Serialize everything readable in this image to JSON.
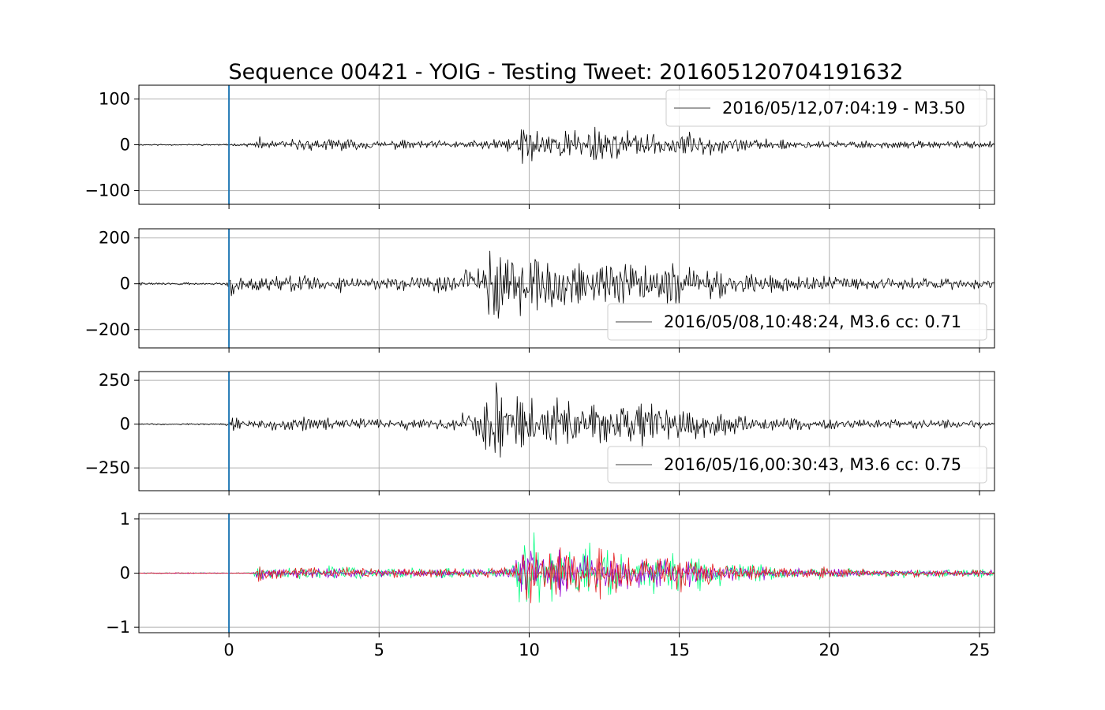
{
  "chart_data": {
    "type": "line",
    "title": "Sequence 00421 - YOIG - Testing Tweet: 201605120704191632",
    "xlim": [
      -3,
      25.5
    ],
    "x_ticks": [
      0,
      5,
      10,
      15,
      20,
      25
    ],
    "x_tick_labels": [
      "0",
      "5",
      "10",
      "15",
      "20",
      "25"
    ],
    "grid": true,
    "marker_x": 0,
    "colors": {
      "trace": "#000000",
      "marker": "#1f77b4",
      "grid": "#b0b0b0",
      "stack": [
        "#00ff7f",
        "#9400d3",
        "#e41a1c"
      ]
    },
    "panels": [
      {
        "ylim": [
          -130,
          130
        ],
        "y_ticks": [
          -100,
          0,
          100
        ],
        "y_tick_labels": [
          "−100",
          "0",
          "100"
        ],
        "legend": "2016/05/12,07:04:19 - M3.50",
        "legend_loc": "upper right",
        "envelope": [
          [
            -3,
            2
          ],
          [
            0,
            2
          ],
          [
            0.9,
            5
          ],
          [
            1.0,
            18
          ],
          [
            1.3,
            12
          ],
          [
            2.5,
            14
          ],
          [
            3.6,
            16
          ],
          [
            5.0,
            11
          ],
          [
            7.0,
            11
          ],
          [
            8.5,
            12
          ],
          [
            9.4,
            16
          ],
          [
            9.7,
            48
          ],
          [
            10.0,
            60
          ],
          [
            10.5,
            32
          ],
          [
            11.5,
            38
          ],
          [
            12.2,
            44
          ],
          [
            13.5,
            28
          ],
          [
            15.0,
            32
          ],
          [
            16.5,
            20
          ],
          [
            18.5,
            12
          ],
          [
            21.0,
            10
          ],
          [
            23.0,
            8
          ],
          [
            25.5,
            8
          ]
        ],
        "seed": 11
      },
      {
        "ylim": [
          -280,
          240
        ],
        "y_ticks": [
          -200,
          0,
          200
        ],
        "y_tick_labels": [
          "−200",
          "0",
          "200"
        ],
        "legend": "2016/05/08,10:48:24, M3.6 cc: 0.71",
        "legend_loc": "lower right",
        "envelope": [
          [
            -3,
            6
          ],
          [
            -0.2,
            6
          ],
          [
            0,
            30
          ],
          [
            0.1,
            70
          ],
          [
            0.5,
            28
          ],
          [
            2.5,
            50
          ],
          [
            4.5,
            35
          ],
          [
            7.5,
            40
          ],
          [
            8.4,
            120
          ],
          [
            9.0,
            240
          ],
          [
            9.5,
            170
          ],
          [
            10.5,
            130
          ],
          [
            11.2,
            160
          ],
          [
            12.0,
            110
          ],
          [
            13.5,
            120
          ],
          [
            14.0,
            130
          ],
          [
            15.0,
            100
          ],
          [
            17.5,
            50
          ],
          [
            20.0,
            35
          ],
          [
            25.5,
            25
          ]
        ],
        "seed": 22
      },
      {
        "ylim": [
          -380,
          300
        ],
        "y_ticks": [
          -250,
          0,
          250
        ],
        "y_tick_labels": [
          "−250",
          "0",
          "250"
        ],
        "legend": "2016/05/16,00:30:43, M3.6 cc: 0.75",
        "legend_loc": "lower right",
        "envelope": [
          [
            -3,
            5
          ],
          [
            -0.2,
            5
          ],
          [
            0,
            30
          ],
          [
            0.1,
            60
          ],
          [
            0.5,
            28
          ],
          [
            2.5,
            50
          ],
          [
            4.5,
            35
          ],
          [
            7.5,
            40
          ],
          [
            8.4,
            140
          ],
          [
            9.0,
            330
          ],
          [
            9.5,
            190
          ],
          [
            10.5,
            140
          ],
          [
            11.2,
            180
          ],
          [
            12.0,
            120
          ],
          [
            13.5,
            140
          ],
          [
            14.0,
            120
          ],
          [
            15.0,
            100
          ],
          [
            17.5,
            45
          ],
          [
            20.0,
            35
          ],
          [
            25.5,
            25
          ]
        ],
        "seed": 33
      },
      {
        "ylim": [
          -1.1,
          1.1
        ],
        "y_ticks": [
          -1,
          0,
          1
        ],
        "y_tick_labels": [
          "−1",
          "0",
          "1"
        ],
        "legend": "",
        "envelope": [
          [
            -3,
            0.01
          ],
          [
            0.8,
            0.01
          ],
          [
            1.0,
            0.22
          ],
          [
            1.3,
            0.12
          ],
          [
            3.6,
            0.15
          ],
          [
            5.0,
            0.1
          ],
          [
            9.4,
            0.12
          ],
          [
            9.7,
            0.6
          ],
          [
            10.0,
            0.95
          ],
          [
            10.5,
            0.5
          ],
          [
            12.2,
            0.55
          ],
          [
            13.5,
            0.4
          ],
          [
            15.0,
            0.4
          ],
          [
            16.5,
            0.25
          ],
          [
            18.5,
            0.12
          ],
          [
            21.0,
            0.1
          ],
          [
            25.5,
            0.08
          ]
        ],
        "seed": 44,
        "stacked": 3
      }
    ]
  }
}
